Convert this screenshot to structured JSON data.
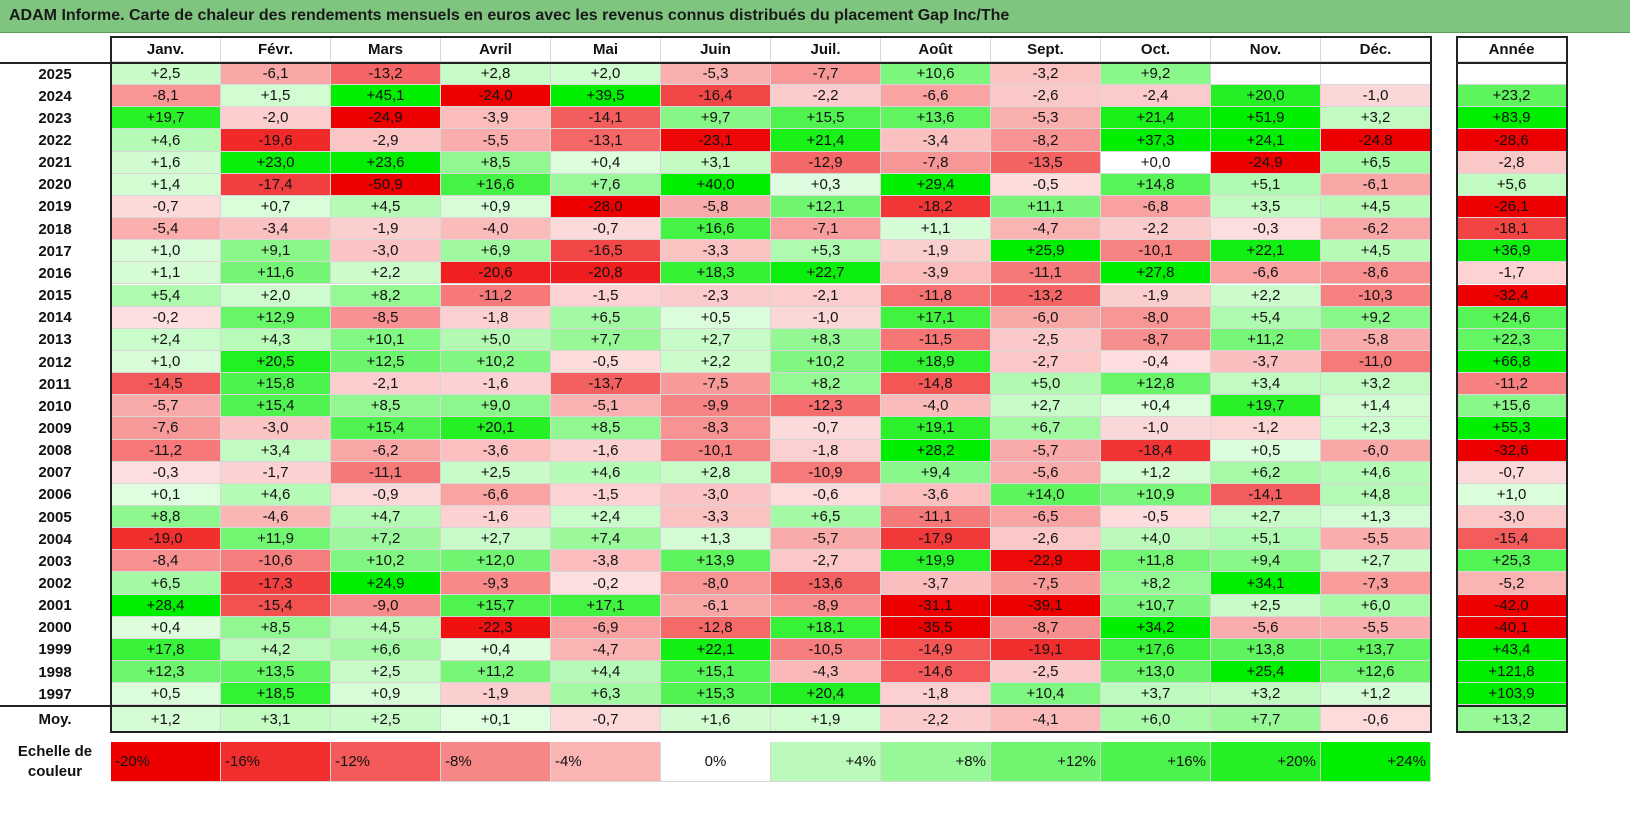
{
  "title": "ADAM Informe. Carte de chaleur des rendements mensuels en euros avec les revenus connus distribués du placement Gap Inc/The",
  "chart_data": {
    "type": "heatmap",
    "title": "ADAM Informe. Carte de chaleur des rendements mensuels en euros avec les revenus connus distribués du placement Gap Inc/The",
    "columns": [
      "Janv.",
      "Févr.",
      "Mars",
      "Avril",
      "Mai",
      "Juin",
      "Juil.",
      "Août",
      "Sept.",
      "Oct.",
      "Nov.",
      "Déc."
    ],
    "year_column": "Année",
    "rows": [
      {
        "year": "2025",
        "values": [
          "+2,5",
          "-6,1",
          "-13,2",
          "+2,8",
          "+2,0",
          "-5,3",
          "-7,7",
          "+10,6",
          "-3,2",
          "+9,2",
          "",
          ""
        ],
        "annual": ""
      },
      {
        "year": "2024",
        "values": [
          "-8,1",
          "+1,5",
          "+45,1",
          "-24,0",
          "+39,5",
          "-16,4",
          "-2,2",
          "-6,6",
          "-2,6",
          "-2,4",
          "+20,0",
          "-1,0"
        ],
        "annual": "+23,2"
      },
      {
        "year": "2023",
        "values": [
          "+19,7",
          "-2,0",
          "-24,9",
          "-3,9",
          "-14,1",
          "+9,7",
          "+15,5",
          "+13,6",
          "-5,3",
          "+21,4",
          "+51,9",
          "+3,2"
        ],
        "annual": "+83,9"
      },
      {
        "year": "2022",
        "values": [
          "+4,6",
          "-19,6",
          "-2,9",
          "-5,5",
          "-13,1",
          "-23,1",
          "+21,4",
          "-3,4",
          "-8,2",
          "+37,3",
          "+24,1",
          "-24,8"
        ],
        "annual": "-28,6"
      },
      {
        "year": "2021",
        "values": [
          "+1,6",
          "+23,0",
          "+23,6",
          "+8,5",
          "+0,4",
          "+3,1",
          "-12,9",
          "-7,8",
          "-13,5",
          "+0,0",
          "-24,9",
          "+6,5"
        ],
        "annual": "-2,8"
      },
      {
        "year": "2020",
        "values": [
          "+1,4",
          "-17,4",
          "-50,9",
          "+16,6",
          "+7,6",
          "+40,0",
          "+0,3",
          "+29,4",
          "-0,5",
          "+14,8",
          "+5,1",
          "-6,1"
        ],
        "annual": "+5,6"
      },
      {
        "year": "2019",
        "values": [
          "-0,7",
          "+0,7",
          "+4,5",
          "+0,9",
          "-28,0",
          "-5,8",
          "+12,1",
          "-18,2",
          "+11,1",
          "-6,8",
          "+3,5",
          "+4,5"
        ],
        "annual": "-26,1"
      },
      {
        "year": "2018",
        "values": [
          "-5,4",
          "-3,4",
          "-1,9",
          "-4,0",
          "-0,7",
          "+16,6",
          "-7,1",
          "+1,1",
          "-4,7",
          "-2,2",
          "-0,3",
          "-6,2"
        ],
        "annual": "-18,1"
      },
      {
        "year": "2017",
        "values": [
          "+1,0",
          "+9,1",
          "-3,0",
          "+6,9",
          "-16,5",
          "-3,3",
          "+5,3",
          "-1,9",
          "+25,9",
          "-10,1",
          "+22,1",
          "+4,5"
        ],
        "annual": "+36,9"
      },
      {
        "year": "2016",
        "values": [
          "+1,1",
          "+11,6",
          "+2,2",
          "-20,6",
          "-20,8",
          "+18,3",
          "+22,7",
          "-3,9",
          "-11,1",
          "+27,8",
          "-6,6",
          "-8,6"
        ],
        "annual": "-1,7"
      },
      {
        "year": "2015",
        "values": [
          "+5,4",
          "+2,0",
          "+8,2",
          "-11,2",
          "-1,5",
          "-2,3",
          "-2,1",
          "-11,8",
          "-13,2",
          "-1,9",
          "+2,2",
          "-10,3"
        ],
        "annual": "-32,4"
      },
      {
        "year": "2014",
        "values": [
          "-0,2",
          "+12,9",
          "-8,5",
          "-1,8",
          "+6,5",
          "+0,5",
          "-1,0",
          "+17,1",
          "-6,0",
          "-8,0",
          "+5,4",
          "+9,2"
        ],
        "annual": "+24,6"
      },
      {
        "year": "2013",
        "values": [
          "+2,4",
          "+4,3",
          "+10,1",
          "+5,0",
          "+7,7",
          "+2,7",
          "+8,3",
          "-11,5",
          "-2,5",
          "-8,7",
          "+11,2",
          "-5,8"
        ],
        "annual": "+22,3"
      },
      {
        "year": "2012",
        "values": [
          "+1,0",
          "+20,5",
          "+12,5",
          "+10,2",
          "-0,5",
          "+2,2",
          "+10,2",
          "+18,9",
          "-2,7",
          "-0,4",
          "-3,7",
          "-11,0"
        ],
        "annual": "+66,8"
      },
      {
        "year": "2011",
        "values": [
          "-14,5",
          "+15,8",
          "-2,1",
          "-1,6",
          "-13,7",
          "-7,5",
          "+8,2",
          "-14,8",
          "+5,0",
          "+12,8",
          "+3,4",
          "+3,2"
        ],
        "annual": "-11,2"
      },
      {
        "year": "2010",
        "values": [
          "-5,7",
          "+15,4",
          "+8,5",
          "+9,0",
          "-5,1",
          "-9,9",
          "-12,3",
          "-4,0",
          "+2,7",
          "+0,4",
          "+19,7",
          "+1,4"
        ],
        "annual": "+15,6"
      },
      {
        "year": "2009",
        "values": [
          "-7,6",
          "-3,0",
          "+15,4",
          "+20,1",
          "+8,5",
          "-8,3",
          "-0,7",
          "+19,1",
          "+6,7",
          "-1,0",
          "-1,2",
          "+2,3"
        ],
        "annual": "+55,3"
      },
      {
        "year": "2008",
        "values": [
          "-11,2",
          "+3,4",
          "-6,2",
          "-3,6",
          "-1,6",
          "-10,1",
          "-1,8",
          "+28,2",
          "-5,7",
          "-18,4",
          "+0,5",
          "-6,0"
        ],
        "annual": "-32,6"
      },
      {
        "year": "2007",
        "values": [
          "-0,3",
          "-1,7",
          "-11,1",
          "+2,5",
          "+4,6",
          "+2,8",
          "-10,9",
          "+9,4",
          "-5,6",
          "+1,2",
          "+6,2",
          "+4,6"
        ],
        "annual": "-0,7"
      },
      {
        "year": "2006",
        "values": [
          "+0,1",
          "+4,6",
          "-0,9",
          "-6,6",
          "-1,5",
          "-3,0",
          "-0,6",
          "-3,6",
          "+14,0",
          "+10,9",
          "-14,1",
          "+4,8"
        ],
        "annual": "+1,0"
      },
      {
        "year": "2005",
        "values": [
          "+8,8",
          "-4,6",
          "+4,7",
          "-1,6",
          "+2,4",
          "-3,3",
          "+6,5",
          "-11,1",
          "-6,5",
          "-0,5",
          "+2,7",
          "+1,3"
        ],
        "annual": "-3,0"
      },
      {
        "year": "2004",
        "values": [
          "-19,0",
          "+11,9",
          "+7,2",
          "+2,7",
          "+7,4",
          "+1,3",
          "-5,7",
          "-17,9",
          "-2,6",
          "+4,0",
          "+5,1",
          "-5,5"
        ],
        "annual": "-15,4"
      },
      {
        "year": "2003",
        "values": [
          "-8,4",
          "-10,6",
          "+10,2",
          "+12,0",
          "-3,8",
          "+13,9",
          "-2,7",
          "+19,9",
          "-22,9",
          "+11,8",
          "+9,4",
          "+2,7"
        ],
        "annual": "+25,3"
      },
      {
        "year": "2002",
        "values": [
          "+6,5",
          "-17,3",
          "+24,9",
          "-9,3",
          "-0,2",
          "-8,0",
          "-13,6",
          "-3,7",
          "-7,5",
          "+8,2",
          "+34,1",
          "-7,3"
        ],
        "annual": "-5,2"
      },
      {
        "year": "2001",
        "values": [
          "+28,4",
          "-15,4",
          "-9,0",
          "+15,7",
          "+17,1",
          "-6,1",
          "-8,9",
          "-31,1",
          "-39,1",
          "+10,7",
          "+2,5",
          "+6,0"
        ],
        "annual": "-42,0"
      },
      {
        "year": "2000",
        "values": [
          "+0,4",
          "+8,5",
          "+4,5",
          "-22,3",
          "-6,9",
          "-12,8",
          "+18,1",
          "-35,5",
          "-8,7",
          "+34,2",
          "-5,6",
          "-5,5"
        ],
        "annual": "-40,1"
      },
      {
        "year": "1999",
        "values": [
          "+17,8",
          "+4,2",
          "+6,6",
          "+0,4",
          "-4,7",
          "+22,1",
          "-10,5",
          "-14,9",
          "-19,1",
          "+17,6",
          "+13,8",
          "+13,7"
        ],
        "annual": "+43,4"
      },
      {
        "year": "1998",
        "values": [
          "+12,3",
          "+13,5",
          "+2,5",
          "+11,2",
          "+4,4",
          "+15,1",
          "-4,3",
          "-14,6",
          "-2,5",
          "+13,0",
          "+25,4",
          "+12,6"
        ],
        "annual": "+121,8"
      },
      {
        "year": "1997",
        "values": [
          "+0,5",
          "+18,5",
          "+0,9",
          "-1,9",
          "+6,3",
          "+15,3",
          "+20,4",
          "-1,8",
          "+10,4",
          "+3,7",
          "+3,2",
          "+1,2"
        ],
        "annual": "+103,9"
      }
    ],
    "average": {
      "label": "Moy.",
      "values": [
        "+1,2",
        "+3,1",
        "+2,5",
        "+0,1",
        "-0,7",
        "+1,6",
        "+1,9",
        "-2,2",
        "-4,1",
        "+6,0",
        "+7,7",
        "-0,6"
      ],
      "annual": "+13,2"
    },
    "color_scale": {
      "label": "Echelle de couleur",
      "steps": [
        "-20%",
        "-16%",
        "-12%",
        "-8%",
        "-4%",
        "0%",
        "+4%",
        "+8%",
        "+12%",
        "+16%",
        "+20%",
        "+24%"
      ],
      "negative_color": "#ee0000",
      "positive_color": "#00ee00",
      "neutral_color": "#ffffff"
    }
  }
}
